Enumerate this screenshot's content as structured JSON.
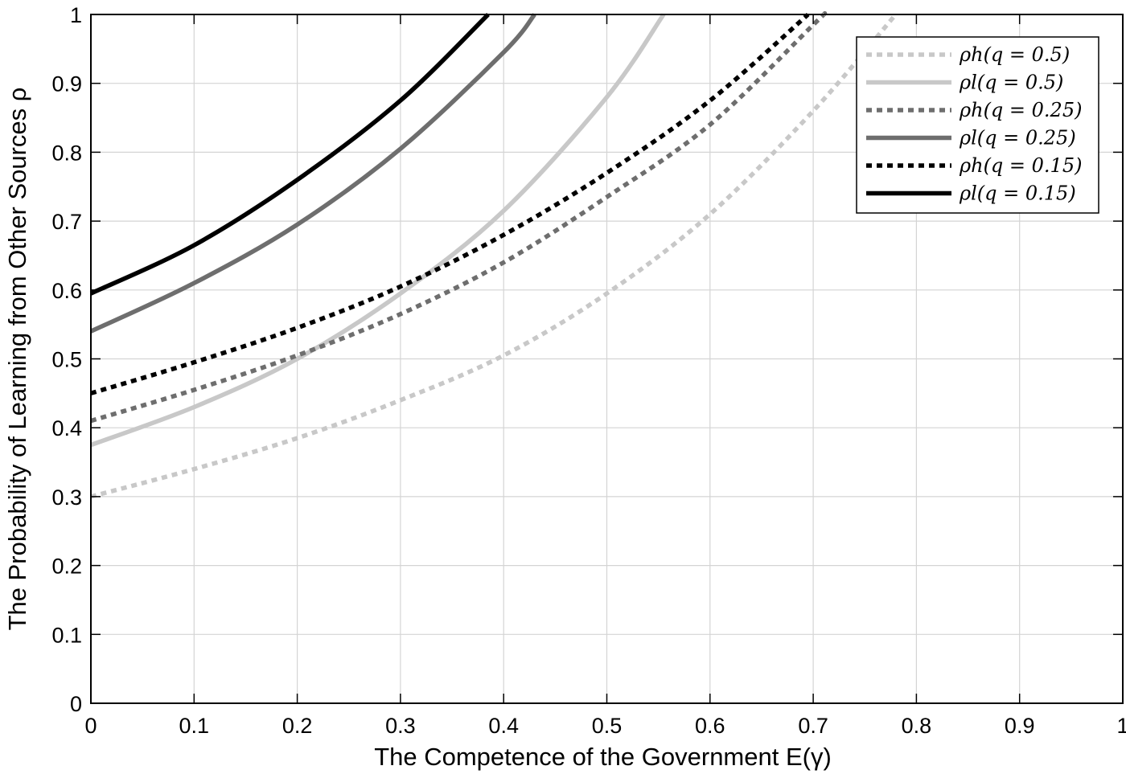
{
  "chart_data": {
    "type": "line",
    "title": "",
    "xlabel": "The Competence of the Government E(γ)",
    "ylabel": "The Probability of Learning from Other Sources ρ",
    "xlim": [
      0,
      1
    ],
    "ylim": [
      0,
      1
    ],
    "xticks": [
      0,
      0.1,
      0.2,
      0.3,
      0.4,
      0.5,
      0.6,
      0.7,
      0.8,
      0.9,
      1
    ],
    "yticks": [
      0,
      0.1,
      0.2,
      0.3,
      0.4,
      0.5,
      0.6,
      0.7,
      0.8,
      0.9,
      1
    ],
    "xtick_labels": [
      "0",
      "0.1",
      "0.2",
      "0.3",
      "0.4",
      "0.5",
      "0.6",
      "0.7",
      "0.8",
      "0.9",
      "1"
    ],
    "ytick_labels": [
      "0",
      "0.1",
      "0.2",
      "0.3",
      "0.4",
      "0.5",
      "0.6",
      "0.7",
      "0.8",
      "0.9",
      "1"
    ],
    "grid": true,
    "legend": "top-right",
    "series": [
      {
        "name": "ρh(q = 0.5)",
        "color": "#c8c8c8",
        "style": "dotted",
        "x": [
          0,
          0.1,
          0.2,
          0.3,
          0.4,
          0.5,
          0.6,
          0.7,
          0.78
        ],
        "y": [
          0.3,
          0.34,
          0.385,
          0.44,
          0.505,
          0.595,
          0.71,
          0.86,
          1.0
        ]
      },
      {
        "name": "ρl(q = 0.5)",
        "color": "#c8c8c8",
        "style": "solid",
        "x": [
          0,
          0.1,
          0.2,
          0.3,
          0.4,
          0.5,
          0.555
        ],
        "y": [
          0.375,
          0.43,
          0.5,
          0.595,
          0.715,
          0.88,
          1.0
        ]
      },
      {
        "name": "ρh(q = 0.25)",
        "color": "#6e6e6e",
        "style": "dotted",
        "x": [
          0,
          0.1,
          0.2,
          0.3,
          0.4,
          0.5,
          0.6,
          0.7,
          0.71
        ],
        "y": [
          0.41,
          0.455,
          0.505,
          0.565,
          0.64,
          0.735,
          0.84,
          0.985,
          1.0
        ]
      },
      {
        "name": "ρl(q = 0.25)",
        "color": "#6e6e6e",
        "style": "solid",
        "x": [
          0,
          0.1,
          0.2,
          0.3,
          0.4,
          0.43
        ],
        "y": [
          0.54,
          0.61,
          0.695,
          0.805,
          0.945,
          1.0
        ]
      },
      {
        "name": "ρh(q = 0.15)",
        "color": "#000000",
        "style": "dotted",
        "x": [
          0,
          0.1,
          0.2,
          0.3,
          0.4,
          0.5,
          0.6,
          0.695
        ],
        "y": [
          0.45,
          0.495,
          0.545,
          0.605,
          0.68,
          0.77,
          0.875,
          1.0
        ]
      },
      {
        "name": "ρl(q = 0.15)",
        "color": "#000000",
        "style": "solid",
        "x": [
          0,
          0.1,
          0.2,
          0.3,
          0.385
        ],
        "y": [
          0.595,
          0.665,
          0.76,
          0.875,
          1.0
        ]
      }
    ]
  }
}
